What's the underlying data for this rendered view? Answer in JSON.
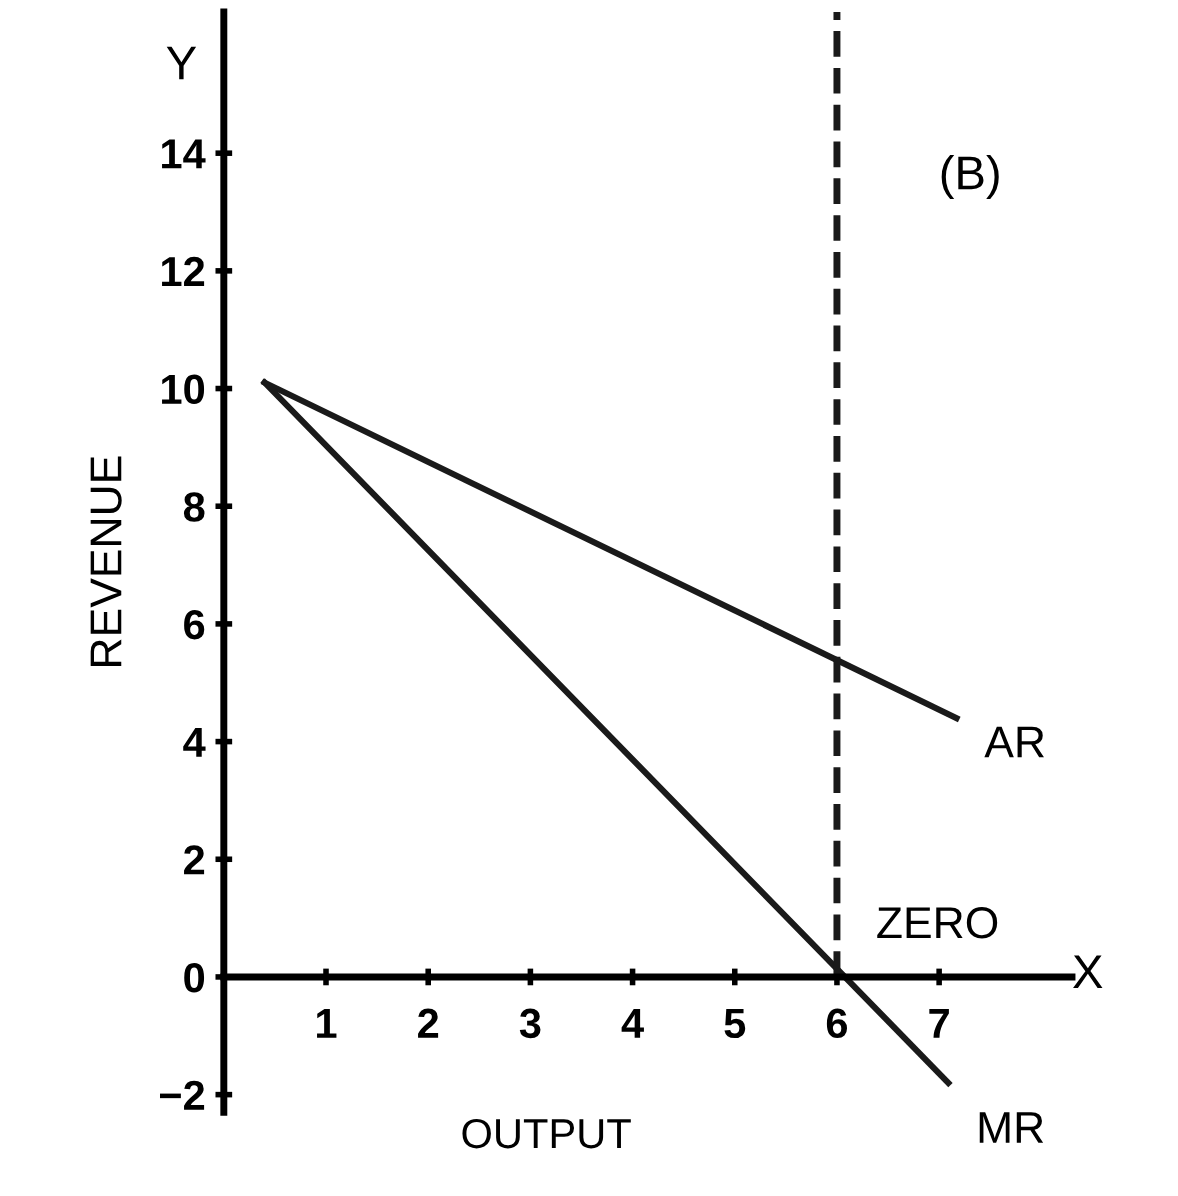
{
  "chart_data": {
    "type": "line",
    "xlabel": "OUTPUT",
    "ylabel": "REVENUE",
    "series": [
      {
        "name": "AR",
        "color": "#1a1a1a",
        "x": [
          0.4,
          7.17
        ],
        "values": [
          10.1,
          4.4
        ]
      },
      {
        "name": "MR",
        "color": "#1a1a1a",
        "x": [
          0.4,
          7.09
        ],
        "values": [
          10.1,
          -1.8
        ]
      }
    ],
    "xlim": [
      0,
      8.3
    ],
    "ylim": [
      -2.3,
      16.4
    ],
    "xticks": [
      1,
      2,
      3,
      4,
      5,
      6,
      7
    ],
    "yticks": [
      {
        "value": -2,
        "label": "−2"
      },
      0,
      2,
      4,
      6,
      8,
      10,
      12,
      14
    ],
    "ref_lines": [
      {
        "axis": "x",
        "value": 6,
        "line_style": "dashed",
        "color": "#1a1a1a"
      }
    ],
    "annotations": [
      "Y",
      "X",
      "(B)",
      {
        "text": "ZERO",
        "x": 6,
        "y": 0
      }
    ],
    "grid": false,
    "legend": false,
    "marker": "none",
    "line_style": "solid"
  }
}
